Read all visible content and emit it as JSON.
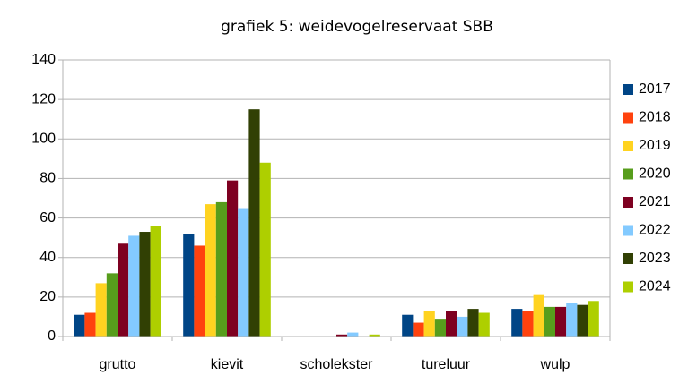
{
  "chart_data": {
    "type": "bar",
    "title": "grafiek 5: weidevogelreservaat SBB",
    "categories": [
      "grutto",
      "kievit",
      "scholekster",
      "tureluur",
      "wulp"
    ],
    "series": [
      {
        "name": "2017",
        "color": "#004586",
        "values": [
          11,
          52,
          0,
          11,
          14
        ]
      },
      {
        "name": "2018",
        "color": "#ff420e",
        "values": [
          12,
          46,
          0,
          7,
          13
        ]
      },
      {
        "name": "2019",
        "color": "#ffd320",
        "values": [
          27,
          67,
          0,
          13,
          21
        ]
      },
      {
        "name": "2020",
        "color": "#579d1c",
        "values": [
          32,
          68,
          0,
          9,
          15
        ]
      },
      {
        "name": "2021",
        "color": "#7e0021",
        "values": [
          47,
          79,
          1,
          13,
          15
        ]
      },
      {
        "name": "2022",
        "color": "#83caff",
        "values": [
          51,
          65,
          2,
          10,
          17
        ]
      },
      {
        "name": "2023",
        "color": "#314004",
        "values": [
          53,
          115,
          0,
          14,
          16
        ]
      },
      {
        "name": "2024",
        "color": "#aecf00",
        "values": [
          56,
          88,
          1,
          12,
          18
        ]
      }
    ],
    "ylim": [
      0,
      140
    ],
    "yticks": [
      0,
      20,
      40,
      60,
      80,
      100,
      120,
      140
    ],
    "grid": true,
    "legend": "right"
  }
}
